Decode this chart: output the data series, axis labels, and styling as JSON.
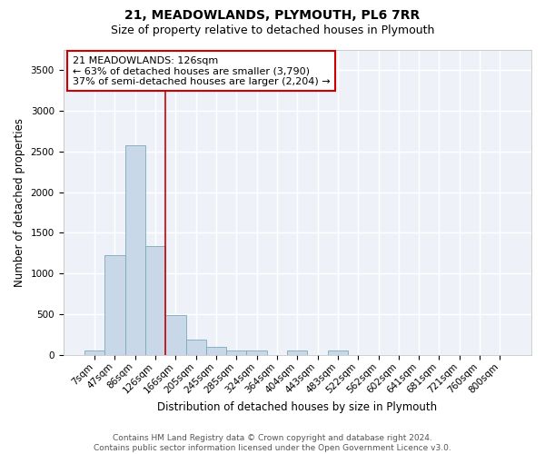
{
  "title": "21, MEADOWLANDS, PLYMOUTH, PL6 7RR",
  "subtitle": "Size of property relative to detached houses in Plymouth",
  "xlabel": "Distribution of detached houses by size in Plymouth",
  "ylabel": "Number of detached properties",
  "bar_color": "#c8d8e8",
  "bar_edge_color": "#7aaabb",
  "categories": [
    "7sqm",
    "47sqm",
    "86sqm",
    "126sqm",
    "166sqm",
    "205sqm",
    "245sqm",
    "285sqm",
    "324sqm",
    "364sqm",
    "404sqm",
    "443sqm",
    "483sqm",
    "522sqm",
    "562sqm",
    "602sqm",
    "641sqm",
    "681sqm",
    "721sqm",
    "760sqm",
    "800sqm"
  ],
  "values": [
    55,
    1220,
    2580,
    1340,
    490,
    190,
    100,
    55,
    50,
    0,
    55,
    0,
    55,
    0,
    0,
    0,
    0,
    0,
    0,
    0,
    0
  ],
  "marker_label": "21 MEADOWLANDS: 126sqm",
  "annotation_line1": "← 63% of detached houses are smaller (3,790)",
  "annotation_line2": "37% of semi-detached houses are larger (2,204) →",
  "ylim": [
    0,
    3750
  ],
  "yticks": [
    0,
    500,
    1000,
    1500,
    2000,
    2500,
    3000,
    3500
  ],
  "vline_color": "#cc0000",
  "vline_x_index": 3,
  "footer1": "Contains HM Land Registry data © Crown copyright and database right 2024.",
  "footer2": "Contains public sector information licensed under the Open Government Licence v3.0.",
  "bg_color": "#eef2f8",
  "grid_color": "#ffffff",
  "title_fontsize": 10,
  "subtitle_fontsize": 9,
  "axis_label_fontsize": 8.5,
  "tick_fontsize": 7.5,
  "footer_fontsize": 6.5,
  "annotation_fontsize": 8
}
